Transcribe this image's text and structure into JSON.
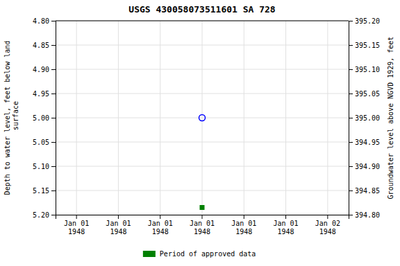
{
  "chart_data": {
    "type": "scatter",
    "title": "USGS 430058073511601 SA 728",
    "y_label": "Depth to water level, feet below land\n surface",
    "y2_label": "Groundwater level above NGVD 1929, feet",
    "categories": [
      "Jan 01\n1948",
      "Jan 01\n1948",
      "Jan 01\n1948",
      "Jan 01\n1948",
      "Jan 01\n1948",
      "Jan 01\n1948",
      "Jan 02\n1948"
    ],
    "series": [
      {
        "color": "blue",
        "marker": "circle",
        "values": [
          null,
          null,
          null,
          5.0,
          null,
          null,
          null
        ]
      },
      {
        "name": "Period of approved data",
        "color": "#008000",
        "marker": "square",
        "values": [
          null,
          null,
          null,
          5.185,
          null,
          null,
          null
        ]
      }
    ],
    "ylim": [
      5.2,
      4.8
    ],
    "yticks": [
      {
        "value": 4.8,
        "label": "4.80"
      },
      4.85,
      {
        "value": 4.9,
        "label": "4.90"
      },
      4.95,
      {
        "value": 5.0,
        "label": "5.00"
      },
      5.05,
      {
        "value": 5.1,
        "label": "5.10"
      },
      5.15,
      {
        "value": 5.2,
        "label": "5.20"
      }
    ],
    "y2lim": [
      394.8,
      395.2
    ],
    "y2ticks": [
      {
        "value": 394.8,
        "label": "394.80"
      },
      394.85,
      {
        "value": 394.9,
        "label": "394.90"
      },
      394.95,
      {
        "value": 395.0,
        "label": "395.00"
      },
      395.05,
      {
        "value": 395.1,
        "label": "395.10"
      },
      395.15,
      {
        "value": 395.2,
        "label": "395.20"
      }
    ],
    "grid": true,
    "legend": "bottom"
  }
}
